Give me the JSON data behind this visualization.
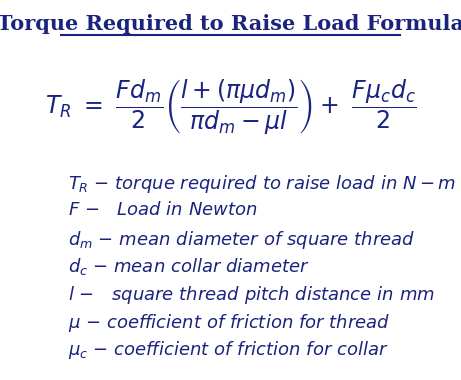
{
  "title": "Torque Required to Raise Load Formula",
  "background_color": "#ffffff",
  "title_color": "#1a237e",
  "title_fontsize": 15,
  "formula_fontsize": 17,
  "desc_fontsize": 13
}
